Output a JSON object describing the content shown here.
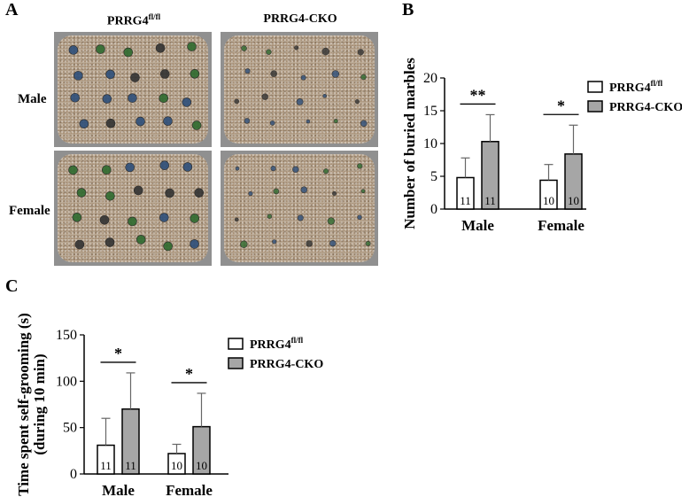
{
  "panel_a": {
    "letter": "A",
    "col_headers": [
      {
        "base": "PRRG4",
        "sup": "fl/fl"
      },
      {
        "base": "PRRG4-CKO",
        "sup": ""
      }
    ],
    "row_headers": [
      "Male",
      "Female"
    ],
    "photo_marbles_visible": [
      {
        "group": "PRRG4fl/fl",
        "sex": "Male",
        "marbles": 20
      },
      {
        "group": "PRRG4-CKO",
        "sex": "Male",
        "marbles": 20
      },
      {
        "group": "PRRG4fl/fl",
        "sex": "Female",
        "marbles": 20
      },
      {
        "group": "PRRG4-CKO",
        "sex": "Female",
        "marbles": 20
      }
    ],
    "colors": {
      "tray": "#909090",
      "bedding": "#b8a792",
      "marble_blue": "#2e4f7a",
      "marble_green": "#2f6b2f",
      "marble_dark": "#333333"
    }
  },
  "chart_data": [
    {
      "id": "B",
      "letter": "B",
      "type": "bar",
      "ylabel": "Number of buried marbles",
      "xlabel": "",
      "categories": [
        "Male",
        "Female"
      ],
      "ylim": [
        0,
        20
      ],
      "yticks": [
        0,
        5,
        10,
        15,
        20
      ],
      "series": [
        {
          "name": "PRRG4fl/fl",
          "legend_base": "PRRG4",
          "legend_sup": "fl/fl",
          "color": "#ffffff",
          "values": [
            4.8,
            4.4
          ],
          "errors": [
            3.0,
            2.4
          ],
          "n": [
            "11",
            "10"
          ]
        },
        {
          "name": "PRRG4-CKO",
          "legend_base": "PRRG4-CKO",
          "legend_sup": "",
          "color": "#a6a6a6",
          "values": [
            10.3,
            8.4
          ],
          "errors": [
            4.1,
            4.4
          ],
          "n": [
            "11",
            "10"
          ]
        }
      ],
      "significance": [
        "**",
        "*"
      ]
    },
    {
      "id": "C",
      "letter": "C",
      "type": "bar",
      "ylabel": "Time spent self-grooming (s)",
      "ylabel2": "(during 10 min)",
      "xlabel": "",
      "categories": [
        "Male",
        "Female"
      ],
      "ylim": [
        0,
        150
      ],
      "yticks": [
        0,
        50,
        100,
        150
      ],
      "series": [
        {
          "name": "PRRG4fl/fl",
          "legend_base": "PRRG4",
          "legend_sup": "fl/fl",
          "color": "#ffffff",
          "values": [
            31,
            22
          ],
          "errors": [
            29,
            10
          ],
          "n": [
            "11",
            "10"
          ]
        },
        {
          "name": "PRRG4-CKO",
          "legend_base": "PRRG4-CKO",
          "legend_sup": "",
          "color": "#a6a6a6",
          "values": [
            70,
            51
          ],
          "errors": [
            39,
            36
          ],
          "n": [
            "11",
            "10"
          ]
        }
      ],
      "significance": [
        "*",
        "*"
      ]
    }
  ]
}
